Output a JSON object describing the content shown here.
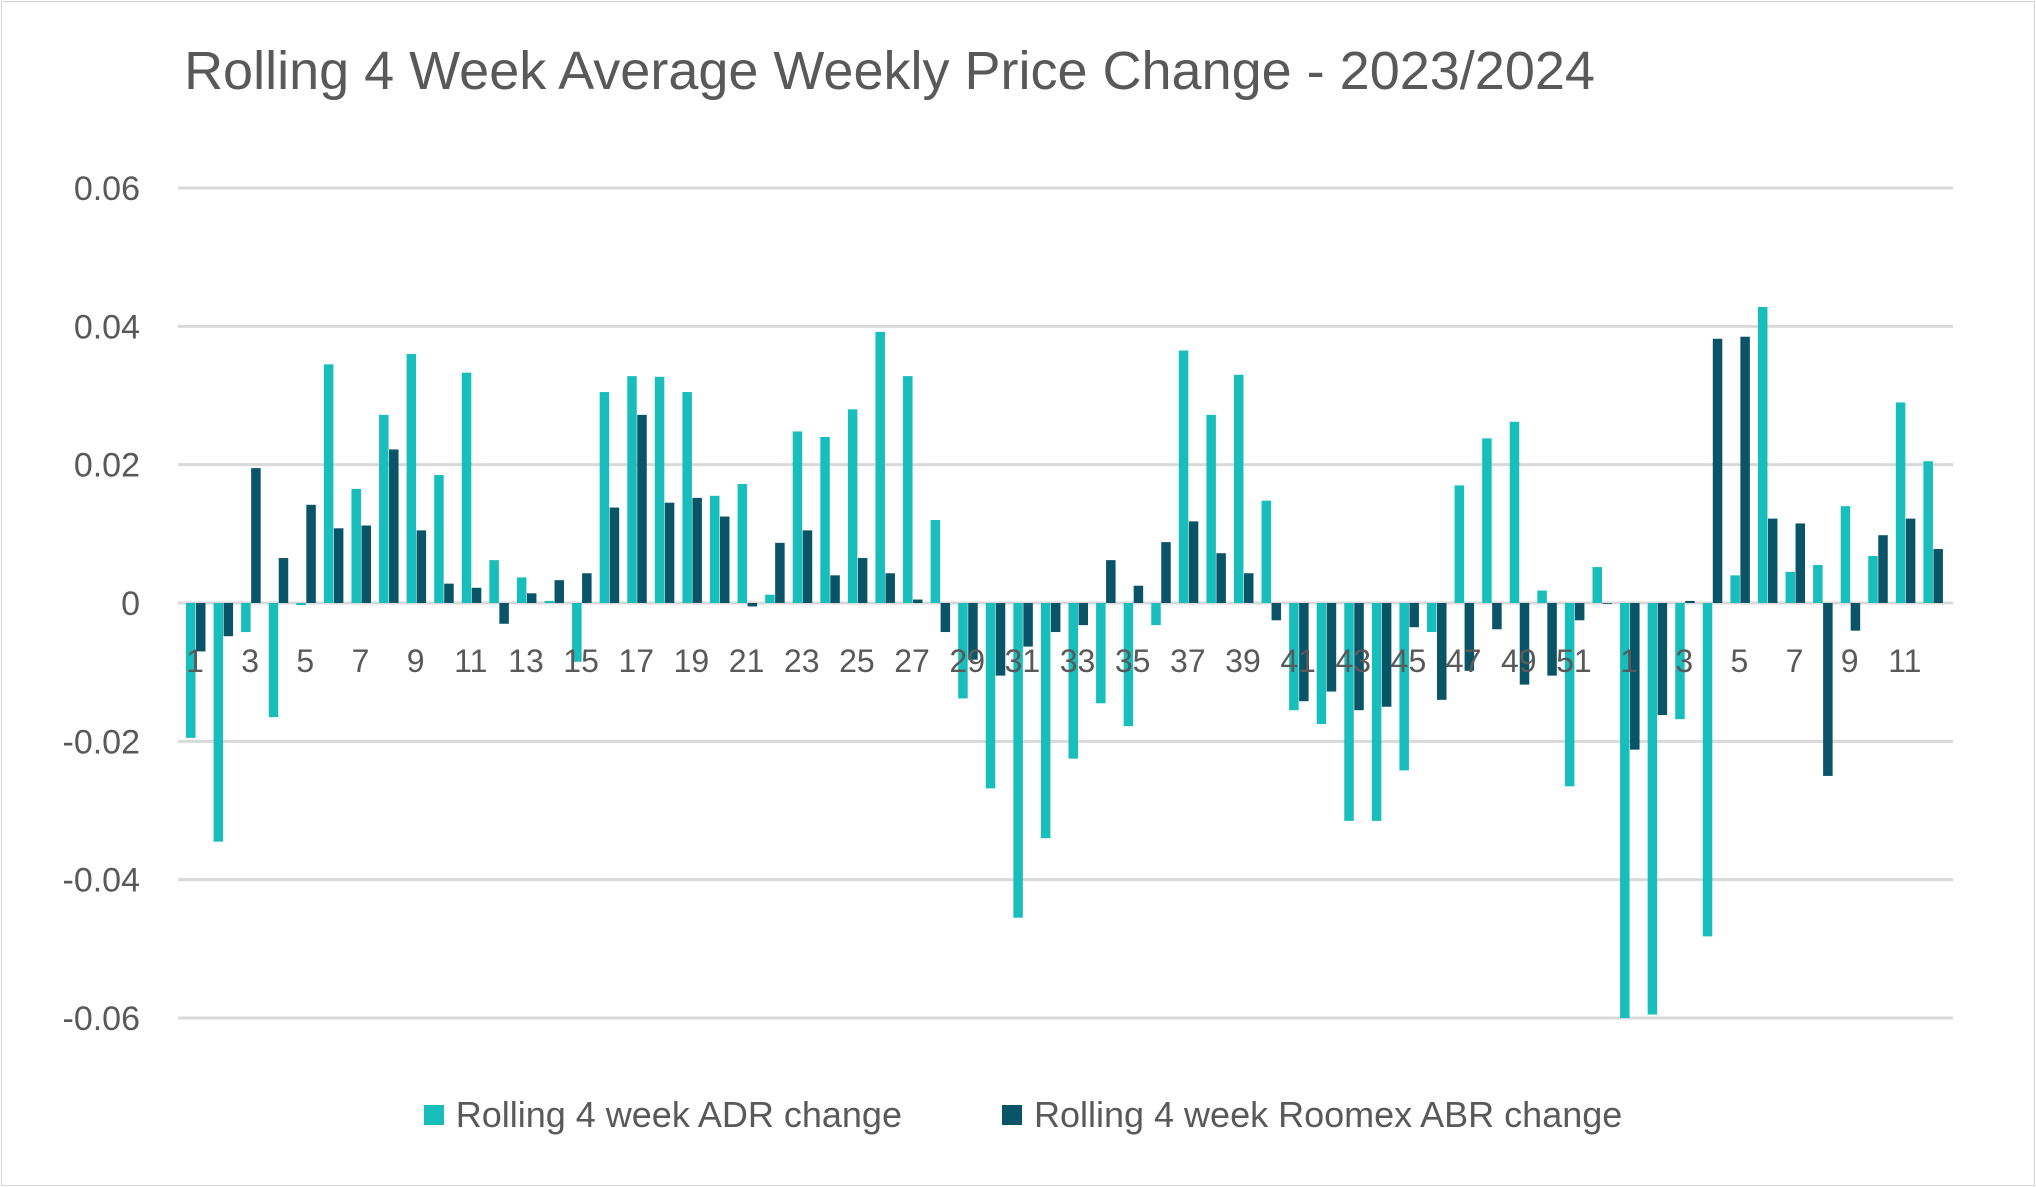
{
  "chart_data": {
    "type": "bar",
    "title": "Rolling 4 Week Average Weekly Price Change - 2023/2024",
    "xlabel": "",
    "ylabel": "",
    "ylim": [
      -0.06,
      0.06
    ],
    "yticks": [
      "0.06",
      "0.04",
      "0.02",
      "0",
      "-0.02",
      "-0.04",
      "-0.06"
    ],
    "grid": true,
    "legend_position": "bottom",
    "categories": [
      "1",
      "2",
      "3",
      "4",
      "5",
      "6",
      "7",
      "8",
      "9",
      "10",
      "11",
      "12",
      "13",
      "14",
      "15",
      "16",
      "17",
      "18",
      "19",
      "20",
      "21",
      "22",
      "23",
      "24",
      "25",
      "26",
      "27",
      "28",
      "29",
      "30",
      "31",
      "32",
      "33",
      "34",
      "35",
      "36",
      "37",
      "38",
      "39",
      "40",
      "41",
      "42",
      "43",
      "44",
      "45",
      "46",
      "47",
      "48",
      "49",
      "50",
      "51",
      "52",
      "1",
      "2",
      "3",
      "4",
      "5",
      "6",
      "7",
      "8",
      "9",
      "10",
      "11",
      "12"
    ],
    "x_tick_labels": [
      "1",
      "",
      "3",
      "",
      "5",
      "",
      "7",
      "",
      "9",
      "",
      "11",
      "",
      "13",
      "",
      "15",
      "",
      "17",
      "",
      "19",
      "",
      "21",
      "",
      "23",
      "",
      "25",
      "",
      "27",
      "",
      "29",
      "",
      "31",
      "",
      "33",
      "",
      "35",
      "",
      "37",
      "",
      "39",
      "",
      "41",
      "",
      "43",
      "",
      "45",
      "",
      "47",
      "",
      "49",
      "",
      "51",
      "",
      "1",
      "",
      "3",
      "",
      "5",
      "",
      "7",
      "",
      "9",
      "",
      "11",
      ""
    ],
    "series": [
      {
        "name": "Rolling 4 week ADR change",
        "color": "#17BEBB",
        "values": [
          -0.0195,
          -0.0345,
          -0.0042,
          -0.0165,
          -0.0003,
          0.0345,
          0.0165,
          0.0272,
          0.036,
          0.0185,
          0.0333,
          0.0062,
          0.0037,
          0.0003,
          -0.0085,
          0.0305,
          0.0328,
          0.0327,
          0.0305,
          0.0155,
          0.0172,
          0.0012,
          0.0248,
          0.024,
          0.028,
          0.0392,
          0.0328,
          0.012,
          -0.0138,
          -0.0268,
          -0.0455,
          -0.034,
          -0.0225,
          -0.0145,
          -0.0178,
          -0.0032,
          0.0365,
          0.0272,
          0.033,
          0.0148,
          -0.0155,
          -0.0175,
          -0.0315,
          -0.0315,
          -0.0242,
          -0.0042,
          0.017,
          0.0238,
          0.0262,
          0.0018,
          -0.0265,
          0.0052,
          -0.06,
          -0.0595,
          -0.0168,
          -0.0482,
          0.004,
          0.0428,
          0.0045,
          0.0055,
          0.014,
          0.0068,
          0.029,
          0.0205
        ]
      },
      {
        "name": "Rolling 4 week Roomex ABR change",
        "color": "#0A5468",
        "values": [
          -0.007,
          -0.0048,
          0.0195,
          0.0065,
          0.0142,
          0.0108,
          0.0112,
          0.0222,
          0.0105,
          0.0028,
          0.0022,
          -0.003,
          0.0014,
          0.0033,
          0.0043,
          0.0138,
          0.0272,
          0.0145,
          0.0152,
          0.0125,
          -0.0005,
          0.0087,
          0.0105,
          0.004,
          0.0065,
          0.0043,
          0.0005,
          -0.0042,
          -0.0082,
          -0.0105,
          -0.0063,
          -0.0042,
          -0.0032,
          0.0062,
          0.0025,
          0.0088,
          0.0118,
          0.0072,
          0.0043,
          -0.0025,
          -0.0142,
          -0.0128,
          -0.0155,
          -0.015,
          -0.0035,
          -0.014,
          -0.0098,
          -0.0038,
          -0.0118,
          -0.0105,
          -0.0025,
          0.0,
          -0.0212,
          -0.0162,
          0.0003,
          0.0382,
          0.0385,
          0.0122,
          0.0115,
          -0.025,
          -0.004,
          0.0098,
          0.0122,
          0.0078
        ]
      }
    ]
  }
}
